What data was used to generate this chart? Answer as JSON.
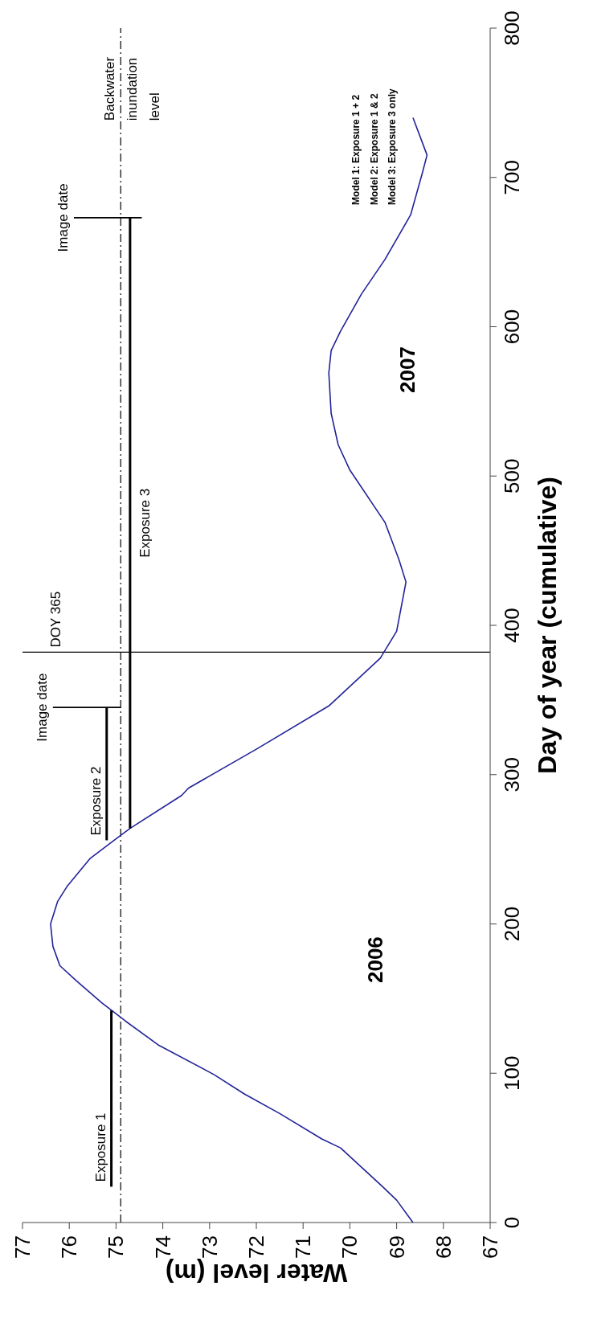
{
  "chart_data": {
    "type": "line",
    "xlabel": "Water level (m)",
    "ylabel": "Day of year (cumulative)",
    "xlim": [
      77,
      67
    ],
    "xticks": [
      77,
      76,
      75,
      74,
      73,
      72,
      71,
      70,
      69,
      68,
      67
    ],
    "ylim": [
      0,
      800
    ],
    "yticks": [
      0,
      100,
      200,
      300,
      400,
      500,
      600,
      700,
      800
    ],
    "marker": "none",
    "line_style": "solid",
    "series": [
      {
        "color": "#22229a",
        "x": [
          68.65,
          69.0,
          69.3,
          70.2,
          70.6,
          71.5,
          72.25,
          72.9,
          74.1,
          74.8,
          75.3,
          75.85,
          76.2,
          76.35,
          76.4,
          76.25,
          76.05,
          75.55,
          75.0,
          74.7,
          73.6,
          73.45,
          72.0,
          70.45,
          69.35,
          69.0,
          68.8,
          68.95,
          69.25,
          70.0,
          70.25,
          70.4,
          70.45,
          70.4,
          70.2,
          69.75,
          69.25,
          68.7,
          68.45,
          68.35,
          68.65
        ],
        "values": [
          0,
          15,
          24,
          50,
          56,
          73,
          86,
          99,
          119,
          135,
          147,
          162,
          172,
          185,
          200,
          215,
          225,
          244,
          257,
          264,
          286,
          291,
          317,
          346,
          378,
          396,
          429,
          444,
          469,
          504,
          521,
          542,
          569,
          584,
          597,
          622,
          645,
          675,
          703,
          715,
          740
        ]
      },
      {
        "name": "Exposure 1",
        "color": "#000000",
        "x": [
          75.1,
          75.1
        ],
        "values": [
          24,
          142
        ]
      },
      {
        "name": "Exposure 2",
        "color": "#000000",
        "x": [
          75.2,
          75.2
        ],
        "values": [
          256,
          345
        ]
      },
      {
        "name": "Exposure 3",
        "color": "#000000",
        "x": [
          74.7,
          74.7
        ],
        "values": [
          264,
          673
        ]
      },
      {
        "name": "Image date",
        "color": "#000000",
        "x": [
          76.35,
          74.9
        ],
        "values": [
          345,
          345
        ]
      },
      {
        "name": "Image date",
        "color": "#000000",
        "x": [
          75.9,
          74.45
        ],
        "values": [
          673,
          673
        ]
      }
    ],
    "ref_lines": [
      {
        "axis": "x",
        "value": 74.9,
        "label": "Backwater inundation level",
        "line_style": "dashed"
      },
      {
        "axis": "y",
        "value": 382,
        "label": "DOY 365",
        "line_style": "solid"
      }
    ],
    "annotations": [
      "2006",
      "2007",
      "Model 1:  Exposure 1 + 2",
      "Model 2:  Exposure 1 & 2",
      "Model 3:  Exposure 3 only"
    ]
  }
}
